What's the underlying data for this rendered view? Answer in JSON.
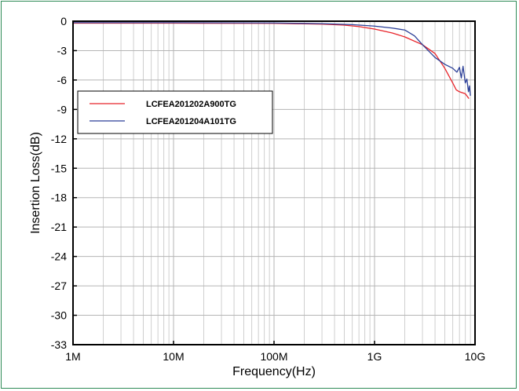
{
  "chart_data": {
    "type": "line",
    "title": "",
    "xlabel": "Frequency(Hz)",
    "ylabel": "Insertion Loss(dB)",
    "x_scale": "log",
    "xlim": [
      1000000,
      10000000000
    ],
    "ylim": [
      -33,
      0
    ],
    "x_ticks": [
      {
        "value": 1000000,
        "label": "1M"
      },
      {
        "value": 10000000,
        "label": "10M"
      },
      {
        "value": 100000000,
        "label": "100M"
      },
      {
        "value": 1000000000,
        "label": "1G"
      },
      {
        "value": 10000000000,
        "label": "10G"
      }
    ],
    "y_ticks": [
      {
        "value": 0,
        "label": "0"
      },
      {
        "value": -3,
        "label": "-3"
      },
      {
        "value": -6,
        "label": "-6"
      },
      {
        "value": -9,
        "label": "-9"
      },
      {
        "value": -12,
        "label": "-12"
      },
      {
        "value": -15,
        "label": "-15"
      },
      {
        "value": -18,
        "label": "-18"
      },
      {
        "value": -21,
        "label": "-21"
      },
      {
        "value": -24,
        "label": "-24"
      },
      {
        "value": -27,
        "label": "-27"
      },
      {
        "value": -30,
        "label": "-30"
      },
      {
        "value": -33,
        "label": "-33"
      }
    ],
    "grid": true,
    "legend_position": "upper-left",
    "series": [
      {
        "name": "LCFEA201202A900TG",
        "color": "#e8242a",
        "points": [
          [
            1000000,
            -0.2
          ],
          [
            10000000,
            -0.2
          ],
          [
            100000000,
            -0.22
          ],
          [
            300000000,
            -0.3
          ],
          [
            500000000,
            -0.4
          ],
          [
            700000000,
            -0.55
          ],
          [
            1000000000,
            -0.8
          ],
          [
            1500000000,
            -1.2
          ],
          [
            2000000000,
            -1.6
          ],
          [
            3000000000,
            -2.4
          ],
          [
            4000000000,
            -3.3
          ],
          [
            5000000000,
            -4.8
          ],
          [
            6000000000,
            -6.3
          ],
          [
            6500000000,
            -7.0
          ],
          [
            7000000000,
            -7.2
          ],
          [
            8000000000,
            -7.4
          ],
          [
            8700000000,
            -7.9
          ]
        ]
      },
      {
        "name": "LCFEA201204A101TG",
        "color": "#2b3f97",
        "points": [
          [
            1000000,
            -0.15
          ],
          [
            10000000,
            -0.15
          ],
          [
            100000000,
            -0.18
          ],
          [
            300000000,
            -0.25
          ],
          [
            600000000,
            -0.35
          ],
          [
            1000000000,
            -0.5
          ],
          [
            1500000000,
            -0.7
          ],
          [
            2000000000,
            -0.9
          ],
          [
            2500000000,
            -1.5
          ],
          [
            3000000000,
            -2.4
          ],
          [
            4000000000,
            -3.7
          ],
          [
            5000000000,
            -4.4
          ],
          [
            6000000000,
            -4.8
          ],
          [
            6600000000,
            -5.2
          ],
          [
            7000000000,
            -4.7
          ],
          [
            7300000000,
            -5.8
          ],
          [
            7600000000,
            -4.6
          ],
          [
            8000000000,
            -6.3
          ],
          [
            8300000000,
            -5.9
          ],
          [
            8600000000,
            -7.2
          ],
          [
            8800000000,
            -6.6
          ],
          [
            9000000000,
            -7.6
          ]
        ]
      }
    ]
  }
}
